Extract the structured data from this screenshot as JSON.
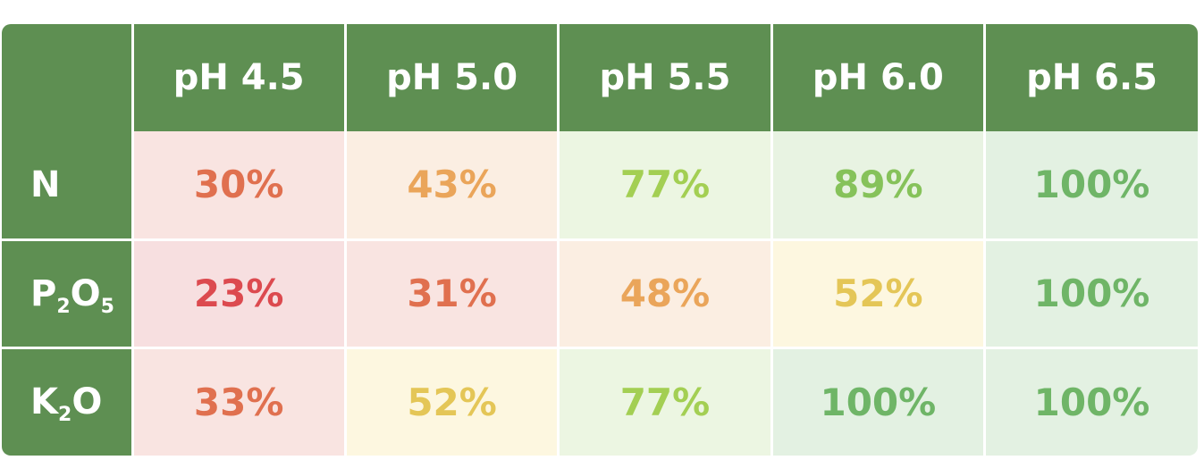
{
  "table": {
    "columns": [
      "pH 4.5",
      "pH 5.0",
      "pH 5.5",
      "pH 6.0",
      "pH 6.5"
    ],
    "rows": [
      {
        "label_main": "N",
        "label_parts": [
          {
            "text": "N",
            "sub": ""
          }
        ],
        "cells": [
          {
            "value": "30%",
            "text_color": "#e0704f",
            "bg_color": "#f9e4e1"
          },
          {
            "value": "43%",
            "text_color": "#eaa55a",
            "bg_color": "#fbeee2"
          },
          {
            "value": "77%",
            "text_color": "#a3cf53",
            "bg_color": "#ecf6e2"
          },
          {
            "value": "89%",
            "text_color": "#86c25a",
            "bg_color": "#e8f3e2"
          },
          {
            "value": "100%",
            "text_color": "#6fb567",
            "bg_color": "#e3f1e2"
          }
        ]
      },
      {
        "label_main": "P2O5",
        "label_parts": [
          {
            "text": "P",
            "sub": "2"
          },
          {
            "text": "O",
            "sub": "5"
          }
        ],
        "cells": [
          {
            "value": "23%",
            "text_color": "#dc4a4f",
            "bg_color": "#f7dfe0"
          },
          {
            "value": "31%",
            "text_color": "#e0704f",
            "bg_color": "#f9e4e1"
          },
          {
            "value": "48%",
            "text_color": "#eaa55a",
            "bg_color": "#fbeee2"
          },
          {
            "value": "52%",
            "text_color": "#e4c657",
            "bg_color": "#fdf7e0"
          },
          {
            "value": "100%",
            "text_color": "#6fb567",
            "bg_color": "#e3f1e2"
          }
        ]
      },
      {
        "label_main": "K2O",
        "label_parts": [
          {
            "text": "K",
            "sub": "2"
          },
          {
            "text": "O",
            "sub": ""
          }
        ],
        "cells": [
          {
            "value": "33%",
            "text_color": "#e0704f",
            "bg_color": "#f9e4e1"
          },
          {
            "value": "52%",
            "text_color": "#e4c657",
            "bg_color": "#fdf7e0"
          },
          {
            "value": "77%",
            "text_color": "#a3cf53",
            "bg_color": "#ecf6e2"
          },
          {
            "value": "100%",
            "text_color": "#6fb567",
            "bg_color": "#e3f1e2"
          },
          {
            "value": "100%",
            "text_color": "#6fb567",
            "bg_color": "#e3f1e2"
          }
        ]
      }
    ]
  },
  "colors": {
    "header_bg": "#5e8f52",
    "header_text": "#ffffff",
    "divider": "#ffffff"
  }
}
